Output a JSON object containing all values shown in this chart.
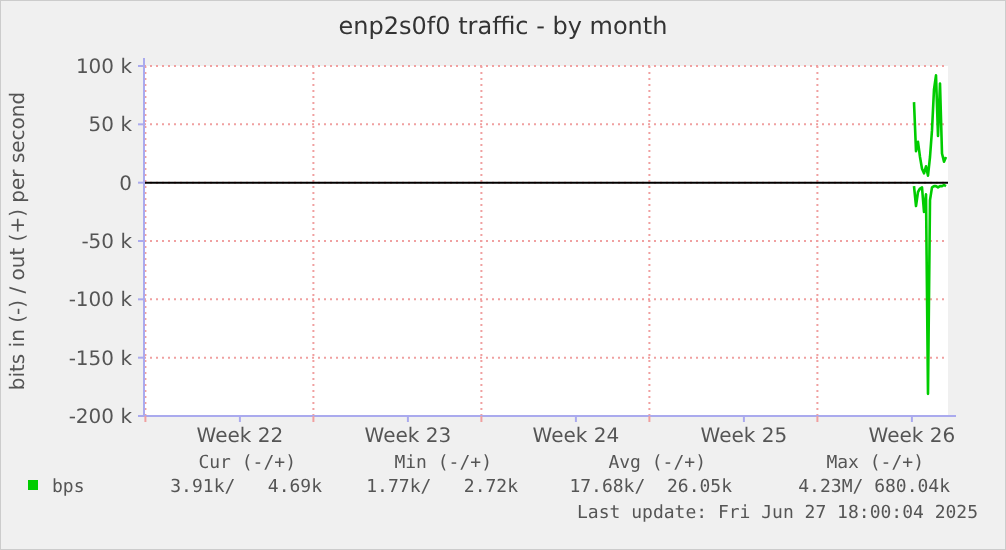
{
  "chart_data": {
    "type": "line",
    "title": "enp2s0f0 traffic - by month",
    "ylabel": "bits in (-) / out (+) per second",
    "x": [
      "2025-06-27T00:36",
      "2025-06-27T02:36",
      "2025-06-27T04:36",
      "2025-06-27T06:36",
      "2025-06-27T08:36",
      "2025-06-27T10:36",
      "2025-06-27T12:36",
      "2025-06-27T14:36",
      "2025-06-27T16:36",
      "2025-06-27T18:36",
      "2025-06-27T20:36",
      "2025-06-27T22:36",
      "2025-06-28T00:36",
      "2025-06-28T02:36",
      "2025-06-28T04:36",
      "2025-06-28T06:36",
      "2025-06-28T08:36"
    ],
    "series": [
      {
        "name": "bps",
        "color": "#00cc00",
        "values": [
          69000,
          27000,
          35000,
          22000,
          12000,
          8000,
          14000,
          6000,
          22000,
          45000,
          80000,
          92000,
          40000,
          85000,
          25000,
          18000,
          22000
        ]
      },
      {
        "color": "#00cc00",
        "values": [
          -3000,
          -20000,
          -8000,
          -5000,
          -4000,
          -25000,
          -10000,
          -181000,
          -15000,
          -4000,
          -3000,
          -3000,
          -4000,
          -3000,
          -3000,
          -2000,
          -3000
        ]
      }
    ],
    "xlim": [
      "2025-05-25T22:36",
      "2025-06-28T10:36"
    ],
    "xticks": [
      {
        "value": "2025-05-26T00:00",
        "label": null
      },
      {
        "value": "2025-05-29T22:30",
        "label": "Week 22"
      },
      {
        "value": "2025-06-02T00:00",
        "label": null
      },
      {
        "value": "2025-06-05T22:30",
        "label": "Week 23"
      },
      {
        "value": "2025-06-09T00:00",
        "label": null
      },
      {
        "value": "2025-06-12T22:30",
        "label": "Week 24"
      },
      {
        "value": "2025-06-16T00:00",
        "label": null
      },
      {
        "value": "2025-06-19T22:30",
        "label": "Week 25"
      },
      {
        "value": "2025-06-23T00:00",
        "label": null
      },
      {
        "value": "2025-06-26T22:30",
        "label": "Week 26"
      }
    ],
    "ylim": [
      -200000,
      100000
    ],
    "yticks": [
      {
        "value": -200000,
        "label": "-200 k"
      },
      {
        "value": -150000,
        "label": "-150 k"
      },
      {
        "value": -100000,
        "label": "-100 k"
      },
      {
        "value": -50000,
        "label": "-50 k"
      },
      0,
      {
        "value": 50000,
        "label": "50 k"
      },
      {
        "value": 100000,
        "label": "100 k"
      }
    ],
    "grid": true,
    "legend": "bottom",
    "ref_lines": [
      {
        "axis": "y",
        "value": 0,
        "color": "#000000"
      }
    ],
    "annotations": [
      "Cur (-/+)",
      "Min (-/+)",
      "Avg (-/+)",
      "Max (-/+)",
      "3.91k/   4.69k",
      "1.77k/   2.72k",
      "17.68k/  26.05k",
      "4.23M/ 680.04k",
      "Last update: Fri Jun 27 18:00:04 2025"
    ]
  }
}
